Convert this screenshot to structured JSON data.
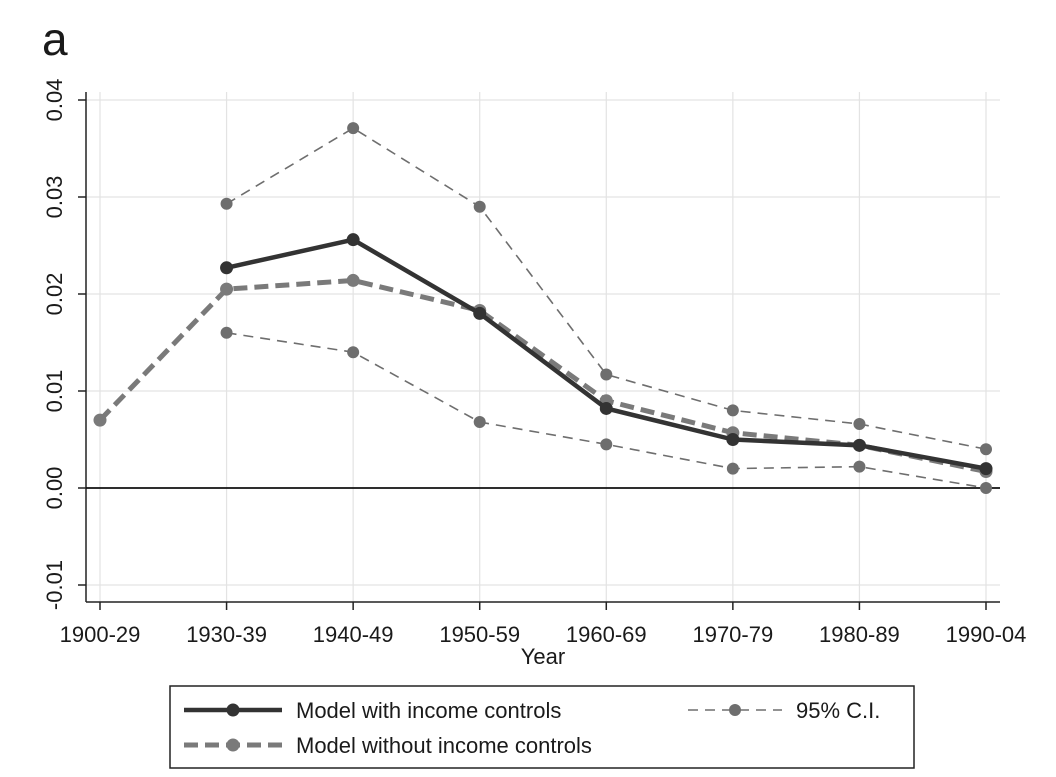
{
  "panel_label": "a",
  "chart_data": {
    "type": "line",
    "xlabel": "Year",
    "ylabel": "",
    "ylim": [
      -0.012,
      0.04
    ],
    "yticks": [
      -0.01,
      0.0,
      0.01,
      0.02,
      0.03,
      0.04
    ],
    "ytick_labels": [
      "-0.01",
      "0.00",
      "0.01",
      "0.02",
      "0.03",
      "0.04"
    ],
    "categories": [
      "1900-29",
      "1930-39",
      "1940-49",
      "1950-59",
      "1960-69",
      "1970-79",
      "1980-89",
      "1990-04"
    ],
    "grid": true,
    "reference_line_y": 0,
    "legend_position": "bottom",
    "series": [
      {
        "name": "Model with income controls",
        "style": "solid-thick",
        "color": "#333333",
        "values": [
          null,
          0.0227,
          0.0256,
          0.018,
          0.0082,
          0.005,
          0.0044,
          0.002
        ]
      },
      {
        "name": "Model without income controls",
        "style": "dashed-thick",
        "color": "#7a7a7a",
        "values": [
          0.007,
          0.0205,
          0.0214,
          0.0183,
          0.009,
          0.0057,
          0.0044,
          0.0017
        ]
      },
      {
        "name": "95% C.I.",
        "style": "dashed-thin",
        "color": "#6e6e6e",
        "bound": "upper",
        "values": [
          null,
          0.0293,
          0.0371,
          0.029,
          0.0117,
          0.008,
          0.0066,
          0.004
        ]
      },
      {
        "name": "",
        "style": "dashed-thin",
        "color": "#6e6e6e",
        "bound": "lower",
        "values": [
          null,
          0.016,
          0.014,
          0.0068,
          0.0045,
          0.002,
          0.0022,
          0.0
        ]
      }
    ],
    "legend": [
      {
        "label": "Model with income controls",
        "style": "solid-thick",
        "color": "#333333"
      },
      {
        "label": "95% C.I.",
        "style": "dashed-thin",
        "color": "#6e6e6e"
      },
      {
        "label": "Model without income controls",
        "style": "dashed-thick",
        "color": "#7a7a7a"
      }
    ]
  }
}
